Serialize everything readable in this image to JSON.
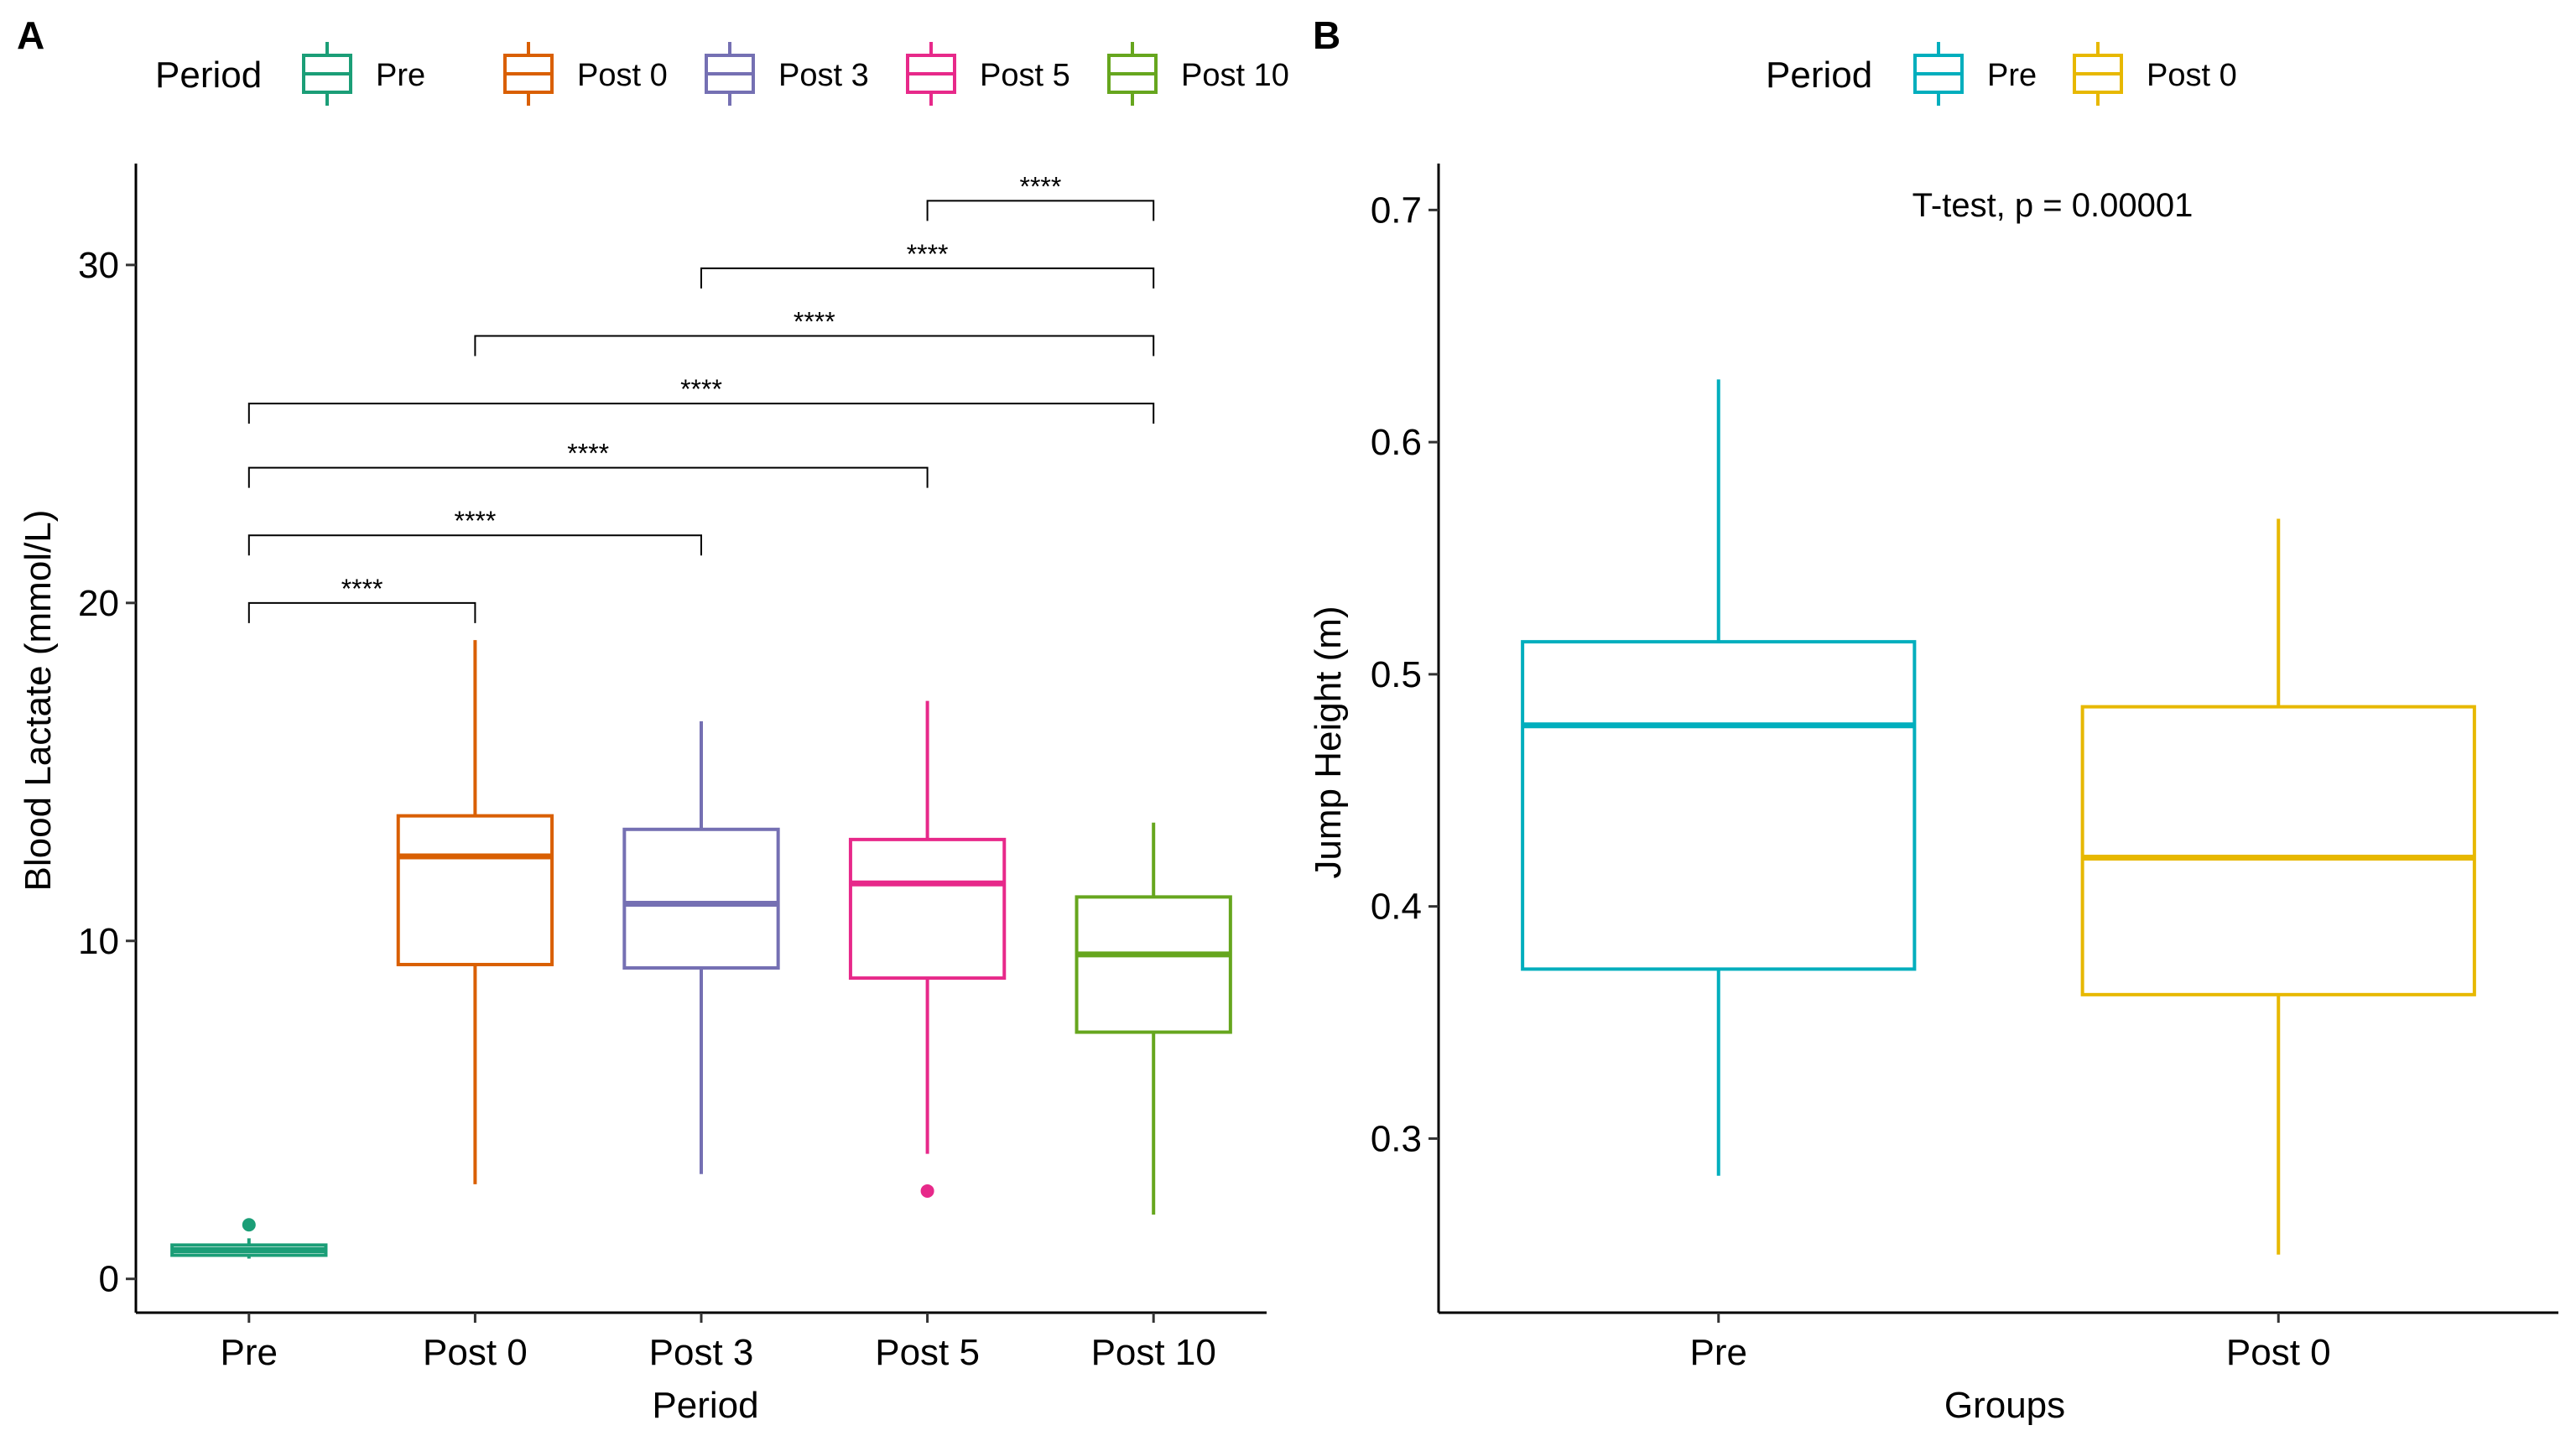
{
  "chart_data": [
    {
      "panel_label": "A",
      "type": "boxplot",
      "legend": {
        "title": "Period",
        "position": "top",
        "entries": [
          {
            "label": "Pre",
            "color": "#1b9e77"
          },
          {
            "label": "Post 0",
            "color": "#d95f02"
          },
          {
            "label": "Post 3",
            "color": "#7570b3"
          },
          {
            "label": "Post 5",
            "color": "#e7298a"
          },
          {
            "label": "Post 10",
            "color": "#66a61e"
          }
        ]
      },
      "xlabel": "Period",
      "ylabel": "Blood Lactate (mmol/L)",
      "ylim": [
        -1,
        33
      ],
      "yticks": [
        0,
        10,
        20,
        30
      ],
      "ytick_labels": [
        "0",
        "10",
        "20",
        "30"
      ],
      "categories": [
        "Pre",
        "Post 0",
        "Post 3",
        "Post 5",
        "Post 10"
      ],
      "boxes": [
        {
          "category": "Pre",
          "color": "#1b9e77",
          "min": 0.6,
          "q1": 0.7,
          "median": 0.85,
          "q3": 1.0,
          "max": 1.2,
          "outliers": [
            1.6
          ]
        },
        {
          "category": "Post 0",
          "color": "#d95f02",
          "min": 2.8,
          "q1": 9.3,
          "median": 12.5,
          "q3": 13.7,
          "max": 18.9,
          "outliers": []
        },
        {
          "category": "Post 3",
          "color": "#7570b3",
          "min": 3.1,
          "q1": 9.2,
          "median": 11.1,
          "q3": 13.3,
          "max": 16.5,
          "outliers": []
        },
        {
          "category": "Post 5",
          "color": "#e7298a",
          "min": 3.7,
          "q1": 8.9,
          "median": 11.7,
          "q3": 13.0,
          "max": 17.1,
          "outliers": [
            2.6
          ]
        },
        {
          "category": "Post 10",
          "color": "#66a61e",
          "min": 1.9,
          "q1": 7.3,
          "median": 9.6,
          "q3": 11.3,
          "max": 13.5,
          "outliers": []
        }
      ],
      "comparisons": [
        {
          "from": "Pre",
          "to": "Post 0",
          "y": 20.0,
          "label": "****"
        },
        {
          "from": "Pre",
          "to": "Post 3",
          "y": 22.0,
          "label": "****"
        },
        {
          "from": "Pre",
          "to": "Post 5",
          "y": 24.0,
          "label": "****"
        },
        {
          "from": "Pre",
          "to": "Post 10",
          "y": 25.9,
          "label": "****"
        },
        {
          "from": "Post 0",
          "to": "Post 10",
          "y": 27.9,
          "label": "****"
        },
        {
          "from": "Post 3",
          "to": "Post 10",
          "y": 29.9,
          "label": "****"
        },
        {
          "from": "Post 5",
          "to": "Post 10",
          "y": 31.9,
          "label": "****"
        }
      ]
    },
    {
      "panel_label": "B",
      "type": "boxplot",
      "legend": {
        "title": "Period",
        "position": "top",
        "entries": [
          {
            "label": "Pre",
            "color": "#00aebd"
          },
          {
            "label": "Post 0",
            "color": "#e7b800"
          }
        ]
      },
      "xlabel": "Groups",
      "ylabel": "Jump Height (m)",
      "ylim": [
        0.225,
        0.72
      ],
      "yticks": [
        0.3,
        0.4,
        0.5,
        0.6,
        0.7
      ],
      "ytick_labels": [
        "0.3",
        "0.4",
        "0.5",
        "0.6",
        "0.7"
      ],
      "categories": [
        "Pre",
        "Post 0"
      ],
      "annotation": "T-test, p = 0.00001",
      "boxes": [
        {
          "category": "Pre",
          "color": "#00aebd",
          "min": 0.284,
          "q1": 0.373,
          "median": 0.478,
          "q3": 0.514,
          "max": 0.627,
          "outliers": []
        },
        {
          "category": "Post 0",
          "color": "#e7b800",
          "min": 0.25,
          "q1": 0.362,
          "median": 0.421,
          "q3": 0.486,
          "max": 0.567,
          "outliers": []
        }
      ]
    }
  ]
}
